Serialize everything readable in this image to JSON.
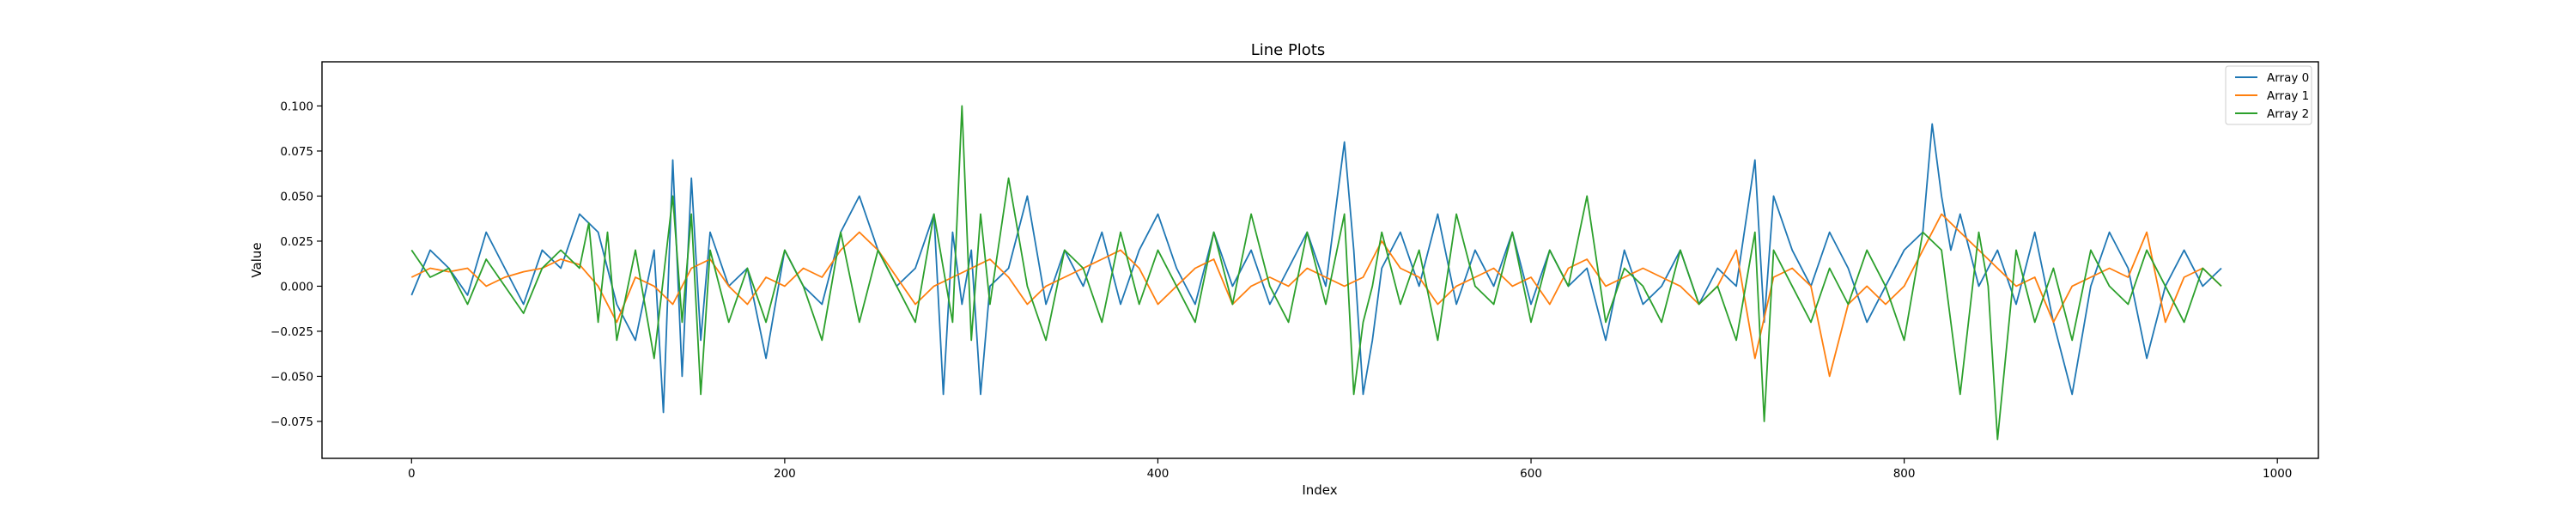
{
  "chart_data": {
    "type": "line",
    "title": "Line Plots",
    "xlabel": "Index",
    "ylabel": "Value",
    "xlim": [
      -48,
      1022
    ],
    "ylim": [
      -0.0955,
      0.1245
    ],
    "xticks": [
      0,
      200,
      400,
      600,
      800,
      1000
    ],
    "xtick_labels": [
      "0",
      "200",
      "400",
      "600",
      "800",
      "1000"
    ],
    "yticks": [
      -0.075,
      -0.05,
      -0.025,
      0.0,
      0.025,
      0.05,
      0.075,
      0.1
    ],
    "ytick_labels": [
      "−0.075",
      "−0.050",
      "−0.025",
      "0.000",
      "0.025",
      "0.050",
      "0.075",
      "0.100"
    ],
    "grid": false,
    "legend_position": "top-right",
    "series": [
      {
        "name": "Array 0",
        "color": "#1f77b4",
        "x": [
          0,
          10,
          20,
          30,
          40,
          50,
          60,
          70,
          80,
          90,
          100,
          110,
          120,
          130,
          135,
          140,
          145,
          150,
          155,
          160,
          170,
          180,
          190,
          200,
          210,
          220,
          230,
          240,
          250,
          260,
          270,
          280,
          285,
          290,
          295,
          300,
          305,
          310,
          320,
          330,
          340,
          350,
          360,
          370,
          380,
          390,
          400,
          410,
          420,
          430,
          440,
          450,
          460,
          470,
          480,
          490,
          500,
          505,
          510,
          515,
          520,
          530,
          540,
          550,
          560,
          570,
          580,
          590,
          600,
          610,
          620,
          630,
          640,
          650,
          660,
          670,
          680,
          690,
          700,
          710,
          720,
          725,
          730,
          740,
          750,
          760,
          770,
          780,
          790,
          800,
          810,
          815,
          820,
          825,
          830,
          840,
          850,
          860,
          870,
          880,
          890,
          900,
          910,
          920,
          930,
          940,
          950,
          960,
          970
        ],
        "values": [
          -0.005,
          0.02,
          0.01,
          -0.005,
          0.03,
          0.01,
          -0.01,
          0.02,
          0.01,
          0.04,
          0.03,
          -0.01,
          -0.03,
          0.02,
          -0.07,
          0.07,
          -0.05,
          0.06,
          -0.03,
          0.03,
          0.0,
          0.01,
          -0.04,
          0.02,
          0.0,
          -0.01,
          0.03,
          0.05,
          0.02,
          0.0,
          0.01,
          0.04,
          -0.06,
          0.03,
          -0.01,
          0.02,
          -0.06,
          0.0,
          0.01,
          0.05,
          -0.01,
          0.02,
          0.0,
          0.03,
          -0.01,
          0.02,
          0.04,
          0.01,
          -0.01,
          0.03,
          0.0,
          0.02,
          -0.01,
          0.01,
          0.03,
          0.0,
          0.08,
          0.02,
          -0.06,
          -0.03,
          0.01,
          0.03,
          0.0,
          0.04,
          -0.01,
          0.02,
          0.0,
          0.03,
          -0.01,
          0.02,
          0.0,
          0.01,
          -0.03,
          0.02,
          -0.01,
          0.0,
          0.02,
          -0.01,
          0.01,
          0.0,
          0.07,
          -0.02,
          0.05,
          0.02,
          0.0,
          0.03,
          0.01,
          -0.02,
          0.0,
          0.02,
          0.03,
          0.09,
          0.05,
          0.02,
          0.04,
          0.0,
          0.02,
          -0.01,
          0.03,
          -0.02,
          -0.06,
          0.0,
          0.03,
          0.01,
          -0.04,
          0.0,
          0.02,
          0.0,
          0.01
        ]
      },
      {
        "name": "Array 1",
        "color": "#ff7f0e",
        "x": [
          0,
          10,
          20,
          30,
          40,
          50,
          60,
          70,
          80,
          90,
          100,
          110,
          120,
          130,
          140,
          150,
          160,
          170,
          180,
          190,
          200,
          210,
          220,
          230,
          240,
          250,
          260,
          270,
          280,
          290,
          300,
          310,
          320,
          330,
          340,
          350,
          360,
          370,
          380,
          390,
          400,
          410,
          420,
          430,
          440,
          450,
          460,
          470,
          480,
          490,
          500,
          510,
          520,
          530,
          540,
          550,
          560,
          570,
          580,
          590,
          600,
          610,
          620,
          630,
          640,
          650,
          660,
          670,
          680,
          690,
          700,
          710,
          720,
          730,
          740,
          750,
          760,
          770,
          780,
          790,
          800,
          810,
          820,
          830,
          840,
          850,
          860,
          870,
          880,
          890,
          900,
          910,
          920,
          930,
          940,
          950,
          960,
          970
        ],
        "values": [
          0.005,
          0.01,
          0.008,
          0.01,
          0.0,
          0.005,
          0.008,
          0.01,
          0.015,
          0.012,
          0.0,
          -0.02,
          0.005,
          0.0,
          -0.01,
          0.01,
          0.015,
          0.0,
          -0.01,
          0.005,
          0.0,
          0.01,
          0.005,
          0.02,
          0.03,
          0.02,
          0.005,
          -0.01,
          0.0,
          0.005,
          0.01,
          0.015,
          0.005,
          -0.01,
          0.0,
          0.005,
          0.01,
          0.015,
          0.02,
          0.01,
          -0.01,
          0.0,
          0.01,
          0.015,
          -0.01,
          0.0,
          0.005,
          0.0,
          0.01,
          0.005,
          0.0,
          0.005,
          0.025,
          0.01,
          0.005,
          -0.01,
          0.0,
          0.005,
          0.01,
          0.0,
          0.005,
          -0.01,
          0.01,
          0.015,
          0.0,
          0.005,
          0.01,
          0.005,
          0.0,
          -0.01,
          0.0,
          0.02,
          -0.04,
          0.005,
          0.01,
          0.0,
          -0.05,
          -0.01,
          0.0,
          -0.01,
          0.0,
          0.02,
          0.04,
          0.03,
          0.02,
          0.01,
          0.0,
          0.005,
          -0.02,
          0.0,
          0.005,
          0.01,
          0.005,
          0.03,
          -0.02,
          0.005,
          0.01,
          0.0
        ]
      },
      {
        "name": "Array 2",
        "color": "#2ca02c",
        "x": [
          0,
          10,
          20,
          30,
          40,
          50,
          60,
          70,
          80,
          90,
          95,
          100,
          105,
          110,
          120,
          130,
          140,
          145,
          150,
          155,
          160,
          170,
          180,
          190,
          200,
          210,
          220,
          230,
          240,
          250,
          260,
          270,
          280,
          290,
          295,
          300,
          305,
          310,
          320,
          330,
          340,
          350,
          360,
          370,
          380,
          390,
          400,
          410,
          420,
          430,
          440,
          450,
          460,
          470,
          480,
          490,
          500,
          505,
          510,
          515,
          520,
          530,
          540,
          550,
          560,
          570,
          580,
          590,
          600,
          610,
          620,
          630,
          640,
          650,
          660,
          670,
          680,
          690,
          700,
          710,
          720,
          725,
          730,
          740,
          750,
          760,
          770,
          780,
          790,
          800,
          810,
          820,
          830,
          840,
          845,
          850,
          860,
          870,
          880,
          890,
          900,
          910,
          920,
          930,
          940,
          950,
          960,
          970
        ],
        "values": [
          0.02,
          0.005,
          0.01,
          -0.01,
          0.015,
          0.0,
          -0.015,
          0.01,
          0.02,
          0.01,
          0.035,
          -0.02,
          0.03,
          -0.03,
          0.02,
          -0.04,
          0.05,
          -0.02,
          0.04,
          -0.06,
          0.02,
          -0.02,
          0.01,
          -0.02,
          0.02,
          0.0,
          -0.03,
          0.03,
          -0.02,
          0.02,
          0.0,
          -0.02,
          0.04,
          -0.02,
          0.1,
          -0.03,
          0.04,
          -0.01,
          0.06,
          0.0,
          -0.03,
          0.02,
          0.01,
          -0.02,
          0.03,
          -0.01,
          0.02,
          0.0,
          -0.02,
          0.03,
          -0.01,
          0.04,
          0.0,
          -0.02,
          0.03,
          -0.01,
          0.04,
          -0.06,
          -0.02,
          0.0,
          0.03,
          -0.01,
          0.02,
          -0.03,
          0.04,
          0.0,
          -0.01,
          0.03,
          -0.02,
          0.02,
          0.0,
          0.05,
          -0.02,
          0.01,
          0.0,
          -0.02,
          0.02,
          -0.01,
          0.0,
          -0.03,
          0.03,
          -0.075,
          0.02,
          0.0,
          -0.02,
          0.01,
          -0.01,
          0.02,
          0.0,
          -0.03,
          0.03,
          0.02,
          -0.06,
          0.03,
          0.0,
          -0.085,
          0.02,
          -0.02,
          0.01,
          -0.03,
          0.02,
          0.0,
          -0.01,
          0.02,
          0.0,
          -0.02,
          0.01,
          0.0
        ]
      }
    ]
  }
}
